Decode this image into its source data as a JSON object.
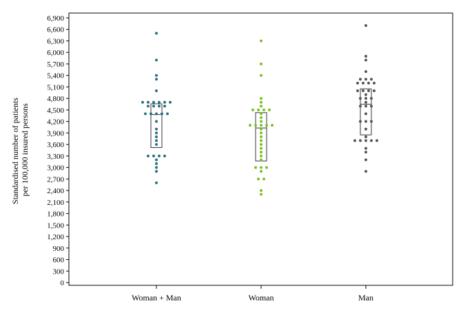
{
  "chart_data": {
    "type": "scatter",
    "subtype": "dot-strip-with-box",
    "ylabel_lines": [
      "Standardised number of patients",
      "per 100,000 insured persons"
    ],
    "ylim": [
      0,
      7000
    ],
    "y_ticks": [
      0,
      300,
      600,
      900,
      1200,
      1500,
      1800,
      2100,
      2400,
      2700,
      3000,
      3300,
      3600,
      3900,
      4200,
      4500,
      4800,
      5100,
      5400,
      5700,
      6000,
      6300,
      6600,
      6900
    ],
    "y_tick_labels": [
      "0",
      "300",
      "600",
      "900",
      "1,200",
      "1,500",
      "1,800",
      "2,100",
      "2,400",
      "2,700",
      "3,000",
      "3,300",
      "3,600",
      "3,900",
      "4,200",
      "4,500",
      "4,800",
      "5,100",
      "5,400",
      "5,700",
      "6,000",
      "6,300",
      "6,600",
      "6,900"
    ],
    "categories": [
      "Woman + Man",
      "Woman",
      "Man"
    ],
    "series": [
      {
        "color": "#2a7080",
        "box": {
          "q1": 3520,
          "median": 4380,
          "q3": 4660
        },
        "points": [
          6500,
          5800,
          5400,
          5300,
          5000,
          4700,
          4700,
          4700,
          4700,
          4700,
          4700,
          4600,
          4600,
          4600,
          4600,
          4400,
          4400,
          4400,
          4400,
          4400,
          4200,
          4000,
          3900,
          3800,
          3700,
          3600,
          3300,
          3300,
          3300,
          3300,
          3200,
          3100,
          3000,
          2900,
          2600
        ]
      },
      {
        "color": "#7cc022",
        "box": {
          "q1": 3170,
          "median": 4030,
          "q3": 4430
        },
        "points": [
          6300,
          5700,
          5400,
          4800,
          4700,
          4600,
          4500,
          4500,
          4500,
          4500,
          4400,
          4300,
          4200,
          4100,
          4100,
          4100,
          4100,
          4100,
          4000,
          3900,
          3800,
          3700,
          3600,
          3500,
          3400,
          3300,
          3200,
          3000,
          3000,
          3000,
          2900,
          2700,
          2700,
          2400,
          2300
        ]
      },
      {
        "color": "#555555",
        "box": {
          "q1": 3850,
          "median": 4650,
          "q3": 5050
        },
        "points": [
          6700,
          5900,
          5800,
          5500,
          5300,
          5300,
          5300,
          5200,
          5200,
          5200,
          5200,
          5000,
          5000,
          5000,
          5000,
          4900,
          4800,
          4800,
          4800,
          4700,
          4600,
          4600,
          4600,
          4400,
          4200,
          4200,
          4200,
          4000,
          3800,
          3700,
          3700,
          3700,
          3700,
          3700,
          3500,
          3400,
          3200,
          2900
        ]
      }
    ]
  }
}
